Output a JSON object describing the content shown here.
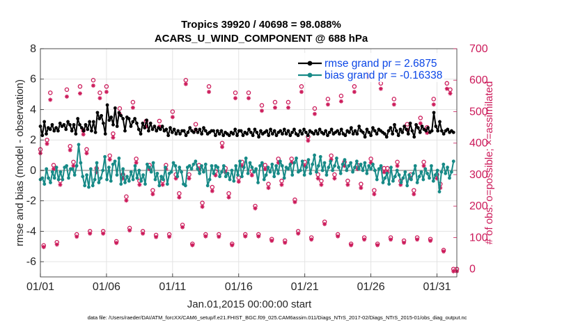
{
  "chart_data": {
    "type": "line",
    "title": "Tropics 39920 / 40698 = 98.088%",
    "subtitle": "ACARS_U_WIND_COMPONENT @ 688 hPa",
    "xlabel": "Jan.01,2015 00:00:00 start",
    "ylabel": "rmse and bias (model - observation)",
    "ylabel_right": "# of obs: o=possible; ×=assimilated",
    "footer": "data file: /Users/raeder/DAI/ATM_forcXX/CAM6_setup/f.e21.FHIST_BGC.f09_025.CAM6assim.011/Diags_NTrS_2017-02/Diags_NTrS_2015-01/obs_diag_output.nc",
    "xlim": [
      0,
      31.5
    ],
    "ylim": [
      -7,
      8
    ],
    "ylim_right": [
      -25,
      700
    ],
    "x_ticks": [
      0,
      5,
      10,
      15,
      20,
      25,
      30
    ],
    "x_tick_labels": [
      "01/01",
      "01/06",
      "01/11",
      "01/16",
      "01/21",
      "01/26",
      "01/31"
    ],
    "y_ticks": [
      -6,
      -4,
      -2,
      0,
      2,
      4,
      6,
      8
    ],
    "y_tick_labels": [
      "-6",
      "-4",
      "-2",
      "0",
      "2",
      "4",
      "6",
      "8"
    ],
    "y2_ticks": [
      0,
      100,
      200,
      300,
      400,
      500,
      600,
      700
    ],
    "y2_tick_labels": [
      "0",
      "100",
      "200",
      "300",
      "400",
      "500",
      "600",
      "700"
    ],
    "grid": true,
    "legend_placement": "top-right",
    "zero_line": 0,
    "series": [
      {
        "name": "rmse",
        "legend_label": "rmse grand pr = 2.6875",
        "color": "#000000",
        "marker": "*",
        "values": [
          2.9,
          2.3,
          3.2,
          2.4,
          2.8,
          2.7,
          3.0,
          2.6,
          2.8,
          2.6,
          3.1,
          2.9,
          3.0,
          2.7,
          3.2,
          3.0,
          2.6,
          3.0,
          2.4,
          3.4,
          3.0,
          2.8,
          2.6,
          3.0,
          2.7,
          3.2,
          2.6,
          3.2,
          2.5,
          3.8,
          3.4,
          3.6,
          3.1,
          2.4,
          4.3,
          3.3,
          3.5,
          3.0,
          4.1,
          2.9,
          3.8,
          3.6,
          3.4,
          2.6,
          3.5,
          3.4,
          2.9,
          3.2,
          3.4,
          3.1,
          2.7,
          2.4,
          3.1,
          2.8,
          3.3,
          2.6,
          3.1,
          2.7,
          2.9,
          2.6,
          2.8,
          2.7,
          2.9,
          2.6,
          2.7,
          2.3,
          2.8,
          2.5,
          2.7,
          2.4,
          2.6,
          2.4,
          2.6,
          2.6,
          2.3,
          2.5,
          2.8,
          2.6,
          2.5,
          2.7,
          2.5,
          2.7,
          2.4,
          2.8,
          2.6,
          2.4,
          2.5,
          2.6,
          2.6,
          2.3,
          2.6,
          2.4,
          2.6,
          2.3,
          2.5,
          2.4,
          2.3,
          2.5,
          2.4,
          2.7,
          2.3,
          2.6,
          2.6,
          2.3,
          2.5,
          2.4,
          2.7,
          2.5,
          2.3,
          2.7,
          2.5,
          2.2,
          2.6,
          2.4,
          2.5,
          2.6,
          2.3,
          2.7,
          2.4,
          2.6,
          2.3,
          2.5,
          2.6,
          2.4,
          2.7,
          2.4,
          2.6,
          2.3,
          2.5,
          2.7,
          2.4,
          2.3,
          2.6,
          2.4,
          2.7,
          2.5,
          2.3,
          2.6,
          2.5,
          2.4,
          2.6,
          2.4,
          2.7,
          2.5,
          2.4,
          2.6,
          2.3,
          2.5,
          2.7,
          2.4,
          2.5,
          2.6,
          2.4,
          2.7,
          2.4,
          2.3,
          2.6,
          2.5,
          2.8,
          2.4,
          2.6,
          2.4,
          2.9,
          2.6,
          2.5,
          2.2,
          2.7,
          2.5,
          2.3,
          2.8,
          2.6,
          2.4,
          2.7,
          2.6,
          2.5,
          2.4,
          2.2,
          2.6,
          2.8,
          2.4,
          3.0,
          2.6,
          2.3,
          2.7,
          2.5,
          2.9,
          2.7,
          2.4,
          3.1,
          2.6,
          2.2,
          3.0,
          2.8,
          2.5,
          2.9,
          2.7,
          2.6,
          2.8,
          2.5,
          2.6,
          3.8,
          2.9,
          2.6,
          3.2,
          2.6,
          2.4,
          2.6,
          2.7,
          2.5,
          2.6,
          2.5
        ]
      },
      {
        "name": "bias",
        "legend_label": "bias grand pr = -0.16338",
        "color": "#178a87",
        "marker": "o",
        "values": [
          -0.6,
          -0.5,
          -0.9,
          0.1,
          -0.5,
          -0.8,
          -0.1,
          -0.5,
          0.2,
          -0.6,
          -0.1,
          -0.6,
          0.2,
          0.3,
          -0.5,
          0.1,
          0.1,
          -0.3,
          0.3,
          1.7,
          0.5,
          -0.4,
          -1.0,
          -0.3,
          -1.1,
          0.1,
          -1.0,
          -0.6,
          0.5,
          -0.8,
          -0.5,
          0.0,
          0.9,
          -0.6,
          0.2,
          -0.7,
          0.4,
          0.6,
          -0.3,
          0.8,
          -0.9,
          0.1,
          -0.8,
          -0.4,
          -0.7,
          -0.1,
          -0.6,
          0.3,
          -0.5,
          0.0,
          -0.7,
          -0.3,
          -0.9,
          0.4,
          0.2,
          -0.1,
          0.5,
          -0.6,
          -0.2,
          -1.0,
          -0.4,
          -0.6,
          0.2,
          -0.9,
          -0.2,
          -0.1,
          0.5,
          0.3,
          -0.4,
          0.2,
          -0.1,
          -0.9,
          -1.0,
          0.2,
          0.3,
          0.1,
          0.4,
          0.6,
          0.1,
          -0.2,
          0.3,
          -0.1,
          0.4,
          -1.0,
          -0.6,
          0.3,
          -0.2,
          0.3,
          0.2,
          -0.4,
          -0.1,
          0.3,
          -0.4,
          -0.2,
          -0.6,
          0.0,
          -0.7,
          0.3,
          -0.3,
          0.6,
          -0.4,
          0.2,
          0.8,
          -0.2,
          0.5,
          0.2,
          -0.1,
          0.1,
          -0.8,
          0.3,
          0.5,
          -0.6,
          -0.3,
          0.2,
          -0.1,
          0.4,
          -0.4,
          0.3,
          -0.2,
          0.6,
          0.3,
          -0.5,
          0.2,
          0.1,
          0.4,
          -0.3,
          0.5,
          0.8,
          -0.1,
          0.0,
          0.6,
          -0.3,
          0.2,
          0.7,
          -0.2,
          0.4,
          1.0,
          -0.1,
          0.3,
          0.9,
          0.0,
          0.5,
          -0.3,
          0.2,
          0.6,
          0.0,
          0.3,
          0.8,
          0.2,
          -0.2,
          0.4,
          0.7,
          0.0,
          0.3,
          0.5,
          -0.1,
          0.2,
          0.6,
          0.1,
          0.4,
          0.0,
          0.5,
          -0.2,
          0.3,
          0.1,
          0.4,
          0.0,
          -0.6,
          0.1,
          0.3,
          -0.8,
          -0.5,
          -0.2,
          -0.9,
          0.2,
          -0.7,
          -0.4,
          0.0,
          -0.3,
          -0.8,
          -0.5,
          -0.1,
          -1.0,
          -0.3,
          -0.6,
          -0.2,
          0.3,
          -0.8,
          -0.4,
          -0.1,
          -0.6,
          0.1,
          -0.2,
          -0.5,
          0.3,
          -0.7,
          -0.3,
          0.0,
          -1.4,
          -0.1,
          0.4,
          -0.2,
          0.2,
          -0.5,
          -0.1,
          0.6
        ]
      },
      {
        "name": "obs_possible",
        "axis": "right",
        "color": "#cc1a5a",
        "marker": "o",
        "x": [
          0.0,
          0.25,
          0.5,
          0.75,
          1.0,
          1.25,
          1.5,
          2.0,
          2.25,
          2.5,
          2.75,
          3.0,
          3.25,
          3.5,
          3.75,
          4.0,
          4.25,
          4.5,
          4.75,
          5.0,
          5.25,
          5.5,
          5.75,
          6.0,
          6.25,
          6.5,
          6.75,
          7.0,
          7.25,
          7.5,
          7.75,
          8.0,
          8.25,
          8.5,
          8.75,
          9.0,
          9.25,
          9.5,
          9.75,
          10.0,
          10.25,
          10.5,
          10.75,
          11.0,
          11.25,
          11.5,
          11.75,
          12.0,
          12.25,
          12.5,
          12.75,
          13.0,
          13.25,
          13.5,
          13.75,
          14.0,
          14.25,
          14.5,
          14.75,
          15.0,
          15.25,
          15.5,
          15.75,
          16.0,
          16.25,
          16.5,
          16.75,
          17.0,
          17.25,
          17.5,
          17.75,
          18.0,
          18.25,
          18.5,
          18.75,
          19.0,
          19.25,
          19.5,
          19.75,
          20.0,
          20.25,
          20.5,
          20.75,
          21.0,
          21.25,
          21.5,
          21.75,
          22.0,
          22.25,
          22.5,
          22.75,
          23.0,
          23.25,
          23.5,
          23.75,
          24.0,
          24.25,
          24.5,
          24.75,
          25.0,
          25.25,
          25.5,
          25.75,
          26.0,
          26.25,
          26.5,
          26.75,
          27.0,
          27.25,
          27.5,
          27.75,
          28.0,
          28.25,
          28.5,
          28.75,
          29.0,
          29.25,
          29.5,
          29.75,
          30.0,
          30.25,
          30.5,
          30.75,
          31.0,
          31.25,
          31.5
        ],
        "values": [
          380,
          75,
          410,
          560,
          330,
          85,
          280,
          570,
          390,
          340,
          110,
          580,
          440,
          380,
          120,
          600,
          320,
          560,
          120,
          580,
          360,
          430,
          88,
          510,
          300,
          230,
          130,
          530,
          350,
          280,
          120,
          470,
          330,
          250,
          108,
          470,
          280,
          330,
          110,
          500,
          300,
          240,
          140,
          600,
          300,
          80,
          460,
          330,
          210,
          110,
          580,
          260,
          310,
          110,
          400,
          320,
          240,
          80,
          560,
          290,
          340,
          110,
          560,
          310,
          200,
          110,
          520,
          330,
          270,
          95,
          530,
          350,
          280,
          90,
          530,
          350,
          220,
          120,
          580,
          340,
          420,
          100,
          510,
          300,
          280,
          150,
          540,
          360,
          300,
          110,
          550,
          340,
          280,
          80,
          580,
          330,
          270,
          100,
          620,
          350,
          250,
          80,
          590,
          320,
          320,
          100,
          540,
          340,
          280,
          90,
          460,
          300,
          250,
          100,
          480,
          340,
          450,
          95,
          540,
          300,
          270,
          60,
          590,
          570,
          0,
          0
        ],
        "note": "approximate observation counts (possible)"
      },
      {
        "name": "obs_assimilated",
        "axis": "right",
        "color": "#cc1a5a",
        "marker": "x",
        "x": [
          0.0,
          0.25,
          0.5,
          0.75,
          1.0,
          1.25,
          1.5,
          2.0,
          2.25,
          2.5,
          2.75,
          3.0,
          3.25,
          3.5,
          3.75,
          4.0,
          4.25,
          4.5,
          4.75,
          5.0,
          5.25,
          5.5,
          5.75,
          6.0,
          6.25,
          6.5,
          6.75,
          7.0,
          7.25,
          7.5,
          7.75,
          8.0,
          8.25,
          8.5,
          8.75,
          9.0,
          9.25,
          9.5,
          9.75,
          10.0,
          10.25,
          10.5,
          10.75,
          11.0,
          11.25,
          11.5,
          11.75,
          12.0,
          12.25,
          12.5,
          12.75,
          13.0,
          13.25,
          13.5,
          13.75,
          14.0,
          14.25,
          14.5,
          14.75,
          15.0,
          15.25,
          15.5,
          15.75,
          16.0,
          16.25,
          16.5,
          16.75,
          17.0,
          17.25,
          17.5,
          17.75,
          18.0,
          18.25,
          18.5,
          18.75,
          19.0,
          19.25,
          19.5,
          19.75,
          20.0,
          20.25,
          20.5,
          20.75,
          21.0,
          21.25,
          21.5,
          21.75,
          22.0,
          22.25,
          22.5,
          22.75,
          23.0,
          23.25,
          23.5,
          23.75,
          24.0,
          24.25,
          24.5,
          24.75,
          25.0,
          25.25,
          25.5,
          25.75,
          26.0,
          26.25,
          26.5,
          26.75,
          27.0,
          27.25,
          27.5,
          27.75,
          28.0,
          28.25,
          28.5,
          28.75,
          29.0,
          29.25,
          29.5,
          29.75,
          30.0,
          30.25,
          30.5,
          30.75,
          31.0,
          31.25,
          31.5
        ],
        "values": [
          370,
          72,
          400,
          540,
          320,
          80,
          270,
          550,
          380,
          330,
          105,
          560,
          430,
          370,
          115,
          585,
          310,
          545,
          115,
          565,
          350,
          420,
          85,
          495,
          290,
          220,
          125,
          515,
          340,
          270,
          115,
          455,
          320,
          240,
          104,
          455,
          270,
          320,
          105,
          485,
          290,
          230,
          135,
          590,
          290,
          78,
          445,
          320,
          200,
          106,
          565,
          250,
          300,
          105,
          390,
          310,
          230,
          78,
          545,
          280,
          330,
          106,
          545,
          300,
          195,
          106,
          505,
          320,
          260,
          92,
          515,
          340,
          270,
          86,
          515,
          340,
          215,
          115,
          565,
          330,
          410,
          96,
          495,
          290,
          270,
          145,
          525,
          350,
          290,
          106,
          535,
          330,
          270,
          78,
          565,
          320,
          260,
          96,
          610,
          340,
          240,
          78,
          575,
          310,
          310,
          96,
          525,
          330,
          270,
          86,
          445,
          290,
          240,
          96,
          465,
          330,
          435,
          92,
          525,
          290,
          260,
          58,
          575,
          560,
          -5,
          -5
        ],
        "note": "approximate observation counts (assimilated)"
      }
    ]
  }
}
